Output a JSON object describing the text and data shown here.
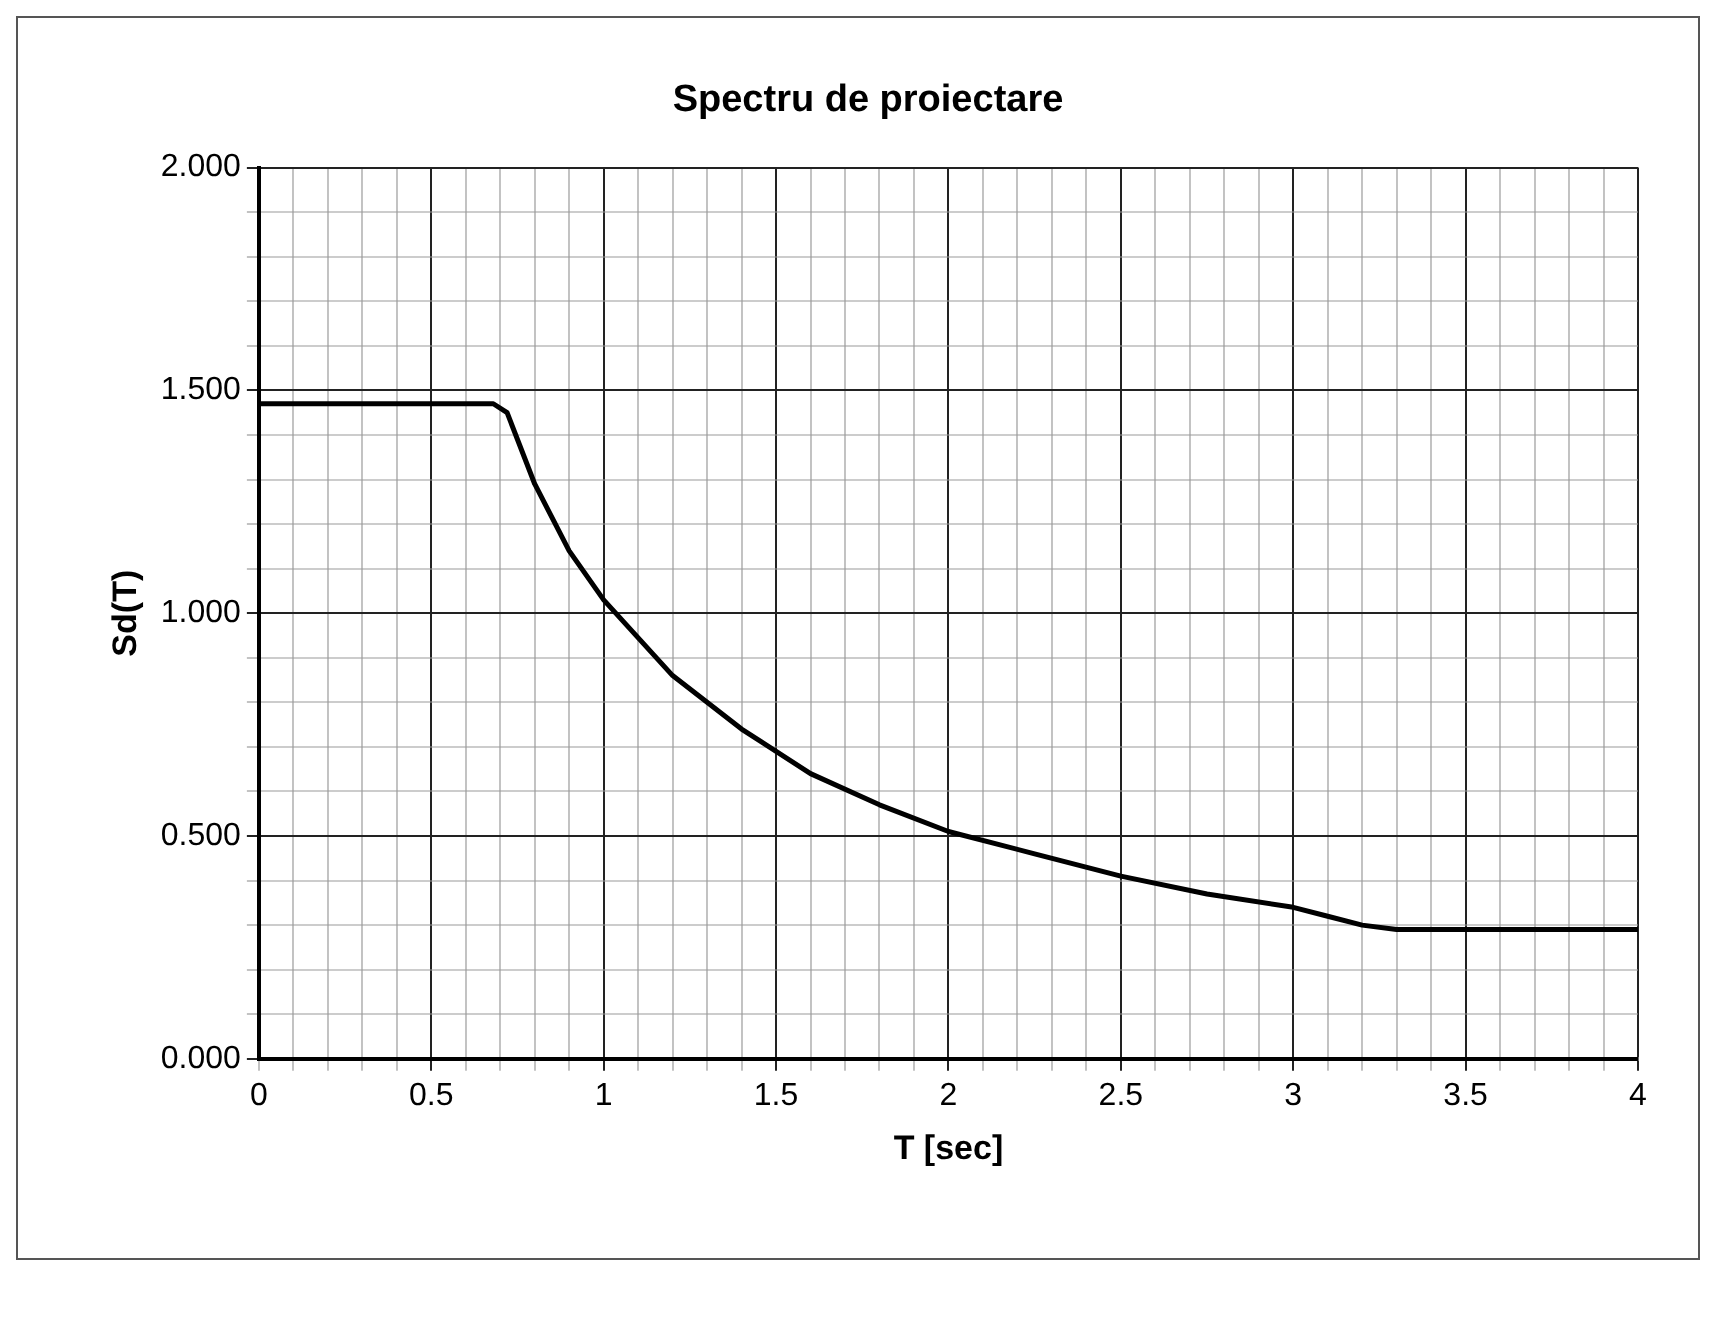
{
  "chart_data": {
    "type": "line",
    "title": "Spectru de proiectare",
    "xlabel": "T [sec]",
    "ylabel": "Sd(T)",
    "x": [
      0,
      0.5,
      0.68,
      0.72,
      0.8,
      0.9,
      1,
      1.2,
      1.4,
      1.6,
      1.8,
      2,
      2.25,
      2.5,
      2.75,
      3,
      3.1,
      3.2,
      3.3,
      3.5,
      4
    ],
    "series": [
      {
        "color": "#000000",
        "values": [
          1.47,
          1.47,
          1.47,
          1.45,
          1.29,
          1.14,
          1.03,
          0.86,
          0.74,
          0.64,
          0.57,
          0.51,
          0.46,
          0.41,
          0.37,
          0.34,
          0.32,
          0.3,
          0.29,
          0.29,
          0.29
        ]
      }
    ],
    "xlim": [
      0,
      4
    ],
    "xticks": [
      0,
      {
        "value": 0.1,
        "label": null
      },
      {
        "value": 0.2,
        "label": null
      },
      {
        "value": 0.3,
        "label": null
      },
      {
        "value": 0.4,
        "label": null
      },
      0.5,
      {
        "value": 0.6,
        "label": null
      },
      {
        "value": 0.7,
        "label": null
      },
      {
        "value": 0.8,
        "label": null
      },
      {
        "value": 0.9,
        "label": null
      },
      1,
      {
        "value": 1.1,
        "label": null
      },
      {
        "value": 1.2,
        "label": null
      },
      {
        "value": 1.3,
        "label": null
      },
      {
        "value": 1.4,
        "label": null
      },
      1.5,
      {
        "value": 1.6,
        "label": null
      },
      {
        "value": 1.7,
        "label": null
      },
      {
        "value": 1.8,
        "label": null
      },
      {
        "value": 1.9,
        "label": null
      },
      2,
      {
        "value": 2.1,
        "label": null
      },
      {
        "value": 2.2,
        "label": null
      },
      {
        "value": 2.3,
        "label": null
      },
      {
        "value": 2.4,
        "label": null
      },
      2.5,
      {
        "value": 2.6,
        "label": null
      },
      {
        "value": 2.7,
        "label": null
      },
      {
        "value": 2.8,
        "label": null
      },
      {
        "value": 2.9,
        "label": null
      },
      3,
      {
        "value": 3.1,
        "label": null
      },
      {
        "value": 3.2,
        "label": null
      },
      {
        "value": 3.3,
        "label": null
      },
      {
        "value": 3.4,
        "label": null
      },
      3.5,
      {
        "value": 3.6,
        "label": null
      },
      {
        "value": 3.7,
        "label": null
      },
      {
        "value": 3.8,
        "label": null
      },
      {
        "value": 3.9,
        "label": null
      },
      4
    ],
    "ylim": [
      0,
      2
    ],
    "yticks": [
      {
        "value": 0,
        "label": "0.000"
      },
      {
        "value": 0.1,
        "label": null
      },
      {
        "value": 0.2,
        "label": null
      },
      {
        "value": 0.3,
        "label": null
      },
      {
        "value": 0.4,
        "label": null
      },
      {
        "value": 0.5,
        "label": "0.500"
      },
      {
        "value": 0.6,
        "label": null
      },
      {
        "value": 0.7,
        "label": null
      },
      {
        "value": 0.8,
        "label": null
      },
      {
        "value": 0.9,
        "label": null
      },
      {
        "value": 1,
        "label": "1.000"
      },
      {
        "value": 1.1,
        "label": null
      },
      {
        "value": 1.2,
        "label": null
      },
      {
        "value": 1.3,
        "label": null
      },
      {
        "value": 1.4,
        "label": null
      },
      {
        "value": 1.5,
        "label": "1.500"
      },
      {
        "value": 1.6,
        "label": null
      },
      {
        "value": 1.7,
        "label": null
      },
      {
        "value": 1.8,
        "label": null
      },
      {
        "value": 1.9,
        "label": null
      },
      {
        "value": 2,
        "label": "2.000"
      }
    ],
    "grid": true,
    "legend": false,
    "marker": "none",
    "line_style": "solid"
  }
}
